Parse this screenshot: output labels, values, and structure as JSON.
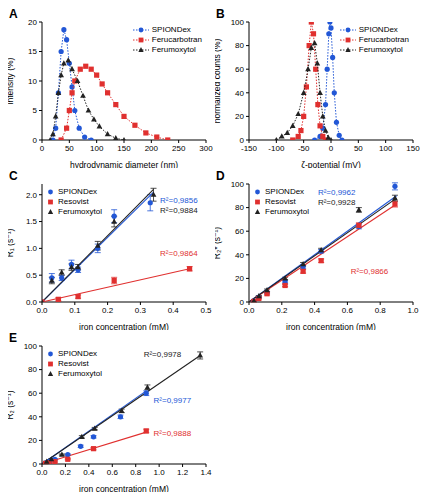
{
  "chart_data": [
    {
      "panel": "A",
      "type": "line",
      "x_label": "hydrodynamic diameter (nm)",
      "y_label": "intensity (%)",
      "xlim": [
        0,
        300
      ],
      "xticks": [
        0,
        50,
        100,
        150,
        200,
        250,
        300
      ],
      "ylim": [
        0,
        20
      ],
      "yticks": [
        0,
        5,
        10,
        15,
        20
      ],
      "legend": "top right",
      "series": [
        {
          "name": "SPIONDex",
          "color": "#2257d6",
          "marker": "circle",
          "line_style": "dotted",
          "x": [
            20,
            25,
            30,
            35,
            40,
            45,
            50,
            55,
            60,
            68,
            78,
            90
          ],
          "values": [
            0,
            2,
            8,
            15,
            18.7,
            17,
            13,
            9,
            5,
            2,
            0.5,
            0
          ]
        },
        {
          "name": "Ferucarbotran",
          "color": "#e0302f",
          "marker": "square",
          "line_style": "dotted",
          "x": [
            35,
            45,
            50,
            55,
            60,
            70,
            80,
            90,
            100,
            110,
            120,
            135,
            150,
            170,
            190,
            210,
            230
          ],
          "values": [
            0,
            2,
            5,
            8,
            10,
            12,
            12.5,
            12,
            11,
            9.5,
            8,
            6,
            4,
            2.5,
            1.2,
            0.5,
            0
          ]
        },
        {
          "name": "Ferumoxytol",
          "color": "#222222",
          "marker": "triangle",
          "line_style": "dotted",
          "x": [
            15,
            20,
            25,
            30,
            35,
            40,
            48,
            55,
            65,
            75,
            85,
            95,
            105,
            120,
            135,
            150
          ],
          "values": [
            0,
            1,
            4,
            8,
            11,
            13,
            13.5,
            12,
            10,
            7.5,
            5,
            3.5,
            2.3,
            1,
            0.3,
            0
          ]
        }
      ]
    },
    {
      "panel": "B",
      "type": "line",
      "x_label": "ζ-potential (mV)",
      "y_label": "normalized counts (%)",
      "xlim": [
        -150,
        150
      ],
      "xticks": [
        -150,
        -100,
        -50,
        0,
        50,
        100,
        150
      ],
      "ylim": [
        0,
        100
      ],
      "yticks": [
        0,
        20,
        40,
        60,
        80,
        100
      ],
      "legend": "top right",
      "series": [
        {
          "name": "SPIONDex",
          "color": "#2257d6",
          "marker": "circle",
          "line_style": "dotted",
          "x": [
            -30,
            -20,
            -15,
            -10,
            -7,
            -4,
            -2,
            0,
            3,
            6,
            10,
            15,
            20
          ],
          "values": [
            0,
            3,
            10,
            30,
            60,
            90,
            100,
            95,
            70,
            40,
            15,
            4,
            0
          ]
        },
        {
          "name": "Ferucarbotran",
          "color": "#e0302f",
          "marker": "square",
          "line_style": "dotted",
          "x": [
            -70,
            -60,
            -55,
            -50,
            -45,
            -40,
            -36,
            -32,
            -28,
            -24,
            -20,
            -15,
            -10
          ],
          "values": [
            0,
            3,
            8,
            20,
            45,
            80,
            100,
            90,
            60,
            30,
            12,
            3,
            0
          ]
        },
        {
          "name": "Ferumoxytol",
          "color": "#222222",
          "marker": "triangle",
          "line_style": "dotted",
          "x": [
            -100,
            -90,
            -80,
            -70,
            -60,
            -50,
            -42,
            -36,
            -30,
            -25,
            -20,
            -15,
            -10,
            -5,
            0
          ],
          "values": [
            0,
            3,
            6,
            12,
            22,
            40,
            60,
            78,
            82,
            65,
            40,
            20,
            8,
            2,
            0
          ]
        }
      ]
    },
    {
      "panel": "C",
      "type": "scatter",
      "x_label": "iron concentration (mM)",
      "y_label": "R₁ (s⁻¹)",
      "xlim": [
        0,
        0.5
      ],
      "xticks": [
        {
          "value": 0,
          "label": "0.0"
        },
        {
          "value": 0.1,
          "label": "0.1"
        },
        {
          "value": 0.2,
          "label": "0.2"
        },
        {
          "value": 0.3,
          "label": "0.3"
        },
        {
          "value": 0.4,
          "label": "0.4"
        },
        {
          "value": 0.5,
          "label": "0.5"
        }
      ],
      "ylim": [
        0,
        2.2
      ],
      "yticks": [
        {
          "value": 0,
          "label": "0.0"
        },
        {
          "value": 0.5,
          "label": "0.5"
        },
        {
          "value": 1,
          "label": "1.0"
        },
        {
          "value": 1.5,
          "label": "1.5"
        },
        {
          "value": 2,
          "label": "2.0"
        }
      ],
      "legend": "top left",
      "series": [
        {
          "name": "SPIONDex",
          "color": "#2257d6",
          "marker": "circle",
          "x": [
            0,
            0.03,
            0.06,
            0.09,
            0.11,
            0.17,
            0.22,
            0.33
          ],
          "values": [
            0,
            0.45,
            0.45,
            0.7,
            0.6,
            1.0,
            1.6,
            1.85
          ],
          "errors": [
            0,
            0.08,
            0.05,
            0.08,
            0.05,
            0.08,
            0.12,
            0.15
          ],
          "fit": {
            "x": [
              0,
              0.34
            ],
            "values": [
              0,
              2.05
            ]
          },
          "annotation": "R²=0,9856"
        },
        {
          "name": "Resovist",
          "color": "#e0302f",
          "marker": "square",
          "x": [
            0,
            0.05,
            0.11,
            0.22,
            0.45
          ],
          "values": [
            0,
            0.05,
            0.1,
            0.4,
            0.62
          ],
          "errors": [
            0,
            0.03,
            0.03,
            0.06,
            0.04
          ],
          "fit": {
            "x": [
              0,
              0.45
            ],
            "values": [
              0,
              0.62
            ]
          },
          "annotation": "R²=0,9864"
        },
        {
          "name": "Ferumoxytol",
          "color": "#222222",
          "marker": "triangle",
          "x": [
            0,
            0.03,
            0.06,
            0.09,
            0.11,
            0.17,
            0.22,
            0.34
          ],
          "values": [
            0,
            0.4,
            0.55,
            0.65,
            0.65,
            1.05,
            1.5,
            2.0
          ],
          "errors": [
            0,
            0.06,
            0.05,
            0.06,
            0.05,
            0.08,
            0.1,
            0.12
          ],
          "fit": {
            "x": [
              0,
              0.34
            ],
            "values": [
              0,
              2.1
            ]
          },
          "annotation": "R²=0,9884"
        }
      ]
    },
    {
      "panel": "D",
      "type": "scatter",
      "x_label": "iron concentration (mM)",
      "y_label": "R₂* (s⁻¹)",
      "xlim": [
        0,
        1
      ],
      "xticks": [
        {
          "value": 0,
          "label": "0.0"
        },
        {
          "value": 0.2,
          "label": "0.2"
        },
        {
          "value": 0.4,
          "label": "0.4"
        },
        {
          "value": 0.6,
          "label": "0.6"
        },
        {
          "value": 0.8,
          "label": "0.8"
        },
        {
          "value": 1,
          "label": "1.0"
        }
      ],
      "ylim": [
        0,
        100
      ],
      "yticks": [
        0,
        20,
        40,
        60,
        80,
        100
      ],
      "legend": "top left",
      "series": [
        {
          "name": "SPIONDex",
          "color": "#2257d6",
          "marker": "circle",
          "x": [
            0.03,
            0.06,
            0.11,
            0.22,
            0.33,
            0.44,
            0.67,
            0.89
          ],
          "values": [
            1,
            4,
            8,
            17,
            30,
            43,
            64,
            98
          ],
          "errors": [
            0.5,
            0.5,
            1,
            1,
            1.5,
            1.5,
            2,
            3
          ],
          "fit": {
            "x": [
              0,
              0.9
            ],
            "values": [
              0,
              90
            ]
          },
          "annotation": "R²=0,9962"
        },
        {
          "name": "Resovist",
          "color": "#e0302f",
          "marker": "square",
          "x": [
            0.03,
            0.06,
            0.11,
            0.22,
            0.33,
            0.44,
            0.67,
            0.89
          ],
          "values": [
            0.5,
            3,
            7,
            14,
            26,
            35,
            65,
            83
          ],
          "errors": [
            0.5,
            0.5,
            1,
            1,
            1.5,
            1.5,
            2,
            2.5
          ],
          "fit": {
            "x": [
              0,
              0.9
            ],
            "values": [
              0,
              83
            ]
          },
          "annotation": "R²=0,9866"
        },
        {
          "name": "Ferumoxytol",
          "color": "#222222",
          "marker": "triangle",
          "x": [
            0.03,
            0.06,
            0.11,
            0.22,
            0.33,
            0.44,
            0.67,
            0.89
          ],
          "values": [
            1,
            5,
            10,
            20,
            32,
            44,
            78,
            88
          ],
          "errors": [
            0.5,
            0.5,
            1,
            1,
            1.5,
            1.5,
            2,
            2.5
          ],
          "fit": {
            "x": [
              0,
              0.9
            ],
            "values": [
              0,
              88
            ]
          },
          "annotation": "R²=0,9928"
        }
      ]
    },
    {
      "panel": "E",
      "type": "scatter",
      "x_label": "iron concentration (mM)",
      "y_label": "R₂ (s⁻¹)",
      "xlim": [
        0,
        1.4
      ],
      "xticks": [
        {
          "value": 0,
          "label": "0.0"
        },
        {
          "value": 0.2,
          "label": "0.2"
        },
        {
          "value": 0.4,
          "label": "0.4"
        },
        {
          "value": 0.6,
          "label": "0.6"
        },
        {
          "value": 0.8,
          "label": "0.8"
        },
        {
          "value": 1,
          "label": "1.0"
        },
        {
          "value": 1.2,
          "label": "1.2"
        },
        {
          "value": 1.4,
          "label": "1.4"
        }
      ],
      "ylim": [
        0,
        100
      ],
      "yticks": [
        0,
        20,
        40,
        60,
        80,
        100
      ],
      "legend": "top left",
      "series": [
        {
          "name": "SPIONDex",
          "color": "#2257d6",
          "marker": "circle",
          "x": [
            0.03,
            0.06,
            0.11,
            0.22,
            0.33,
            0.44,
            0.67,
            0.89
          ],
          "values": [
            1,
            2,
            4,
            8,
            15,
            23,
            40,
            60
          ],
          "errors": [
            0.3,
            0.3,
            0.5,
            0.5,
            1,
            1,
            1.5,
            2
          ],
          "fit": {
            "x": [
              0,
              0.89
            ],
            "values": [
              0,
              62
            ]
          },
          "annotation": "R²=0,9977"
        },
        {
          "name": "Resovist",
          "color": "#e0302f",
          "marker": "square",
          "x": [
            0.03,
            0.06,
            0.11,
            0.22,
            0.44,
            0.89
          ],
          "values": [
            0.5,
            1,
            2,
            4,
            13,
            28
          ],
          "errors": [
            0.3,
            0.3,
            0.5,
            0.5,
            1,
            1.5
          ],
          "fit": {
            "x": [
              0,
              0.89
            ],
            "values": [
              0,
              27
            ]
          },
          "annotation": "R²=0,9888"
        },
        {
          "name": "Ferumoxytol",
          "color": "#222222",
          "marker": "triangle",
          "x": [
            0.04,
            0.08,
            0.17,
            0.34,
            0.45,
            0.68,
            0.9,
            1.35
          ],
          "values": [
            2,
            4,
            8,
            23,
            30,
            45,
            65,
            92
          ],
          "errors": [
            0.3,
            0.5,
            0.5,
            1,
            1,
            1.5,
            2,
            3
          ],
          "fit": {
            "x": [
              0,
              1.35
            ],
            "values": [
              0,
              92
            ]
          },
          "annotation": "R²=0,9978"
        }
      ]
    }
  ]
}
